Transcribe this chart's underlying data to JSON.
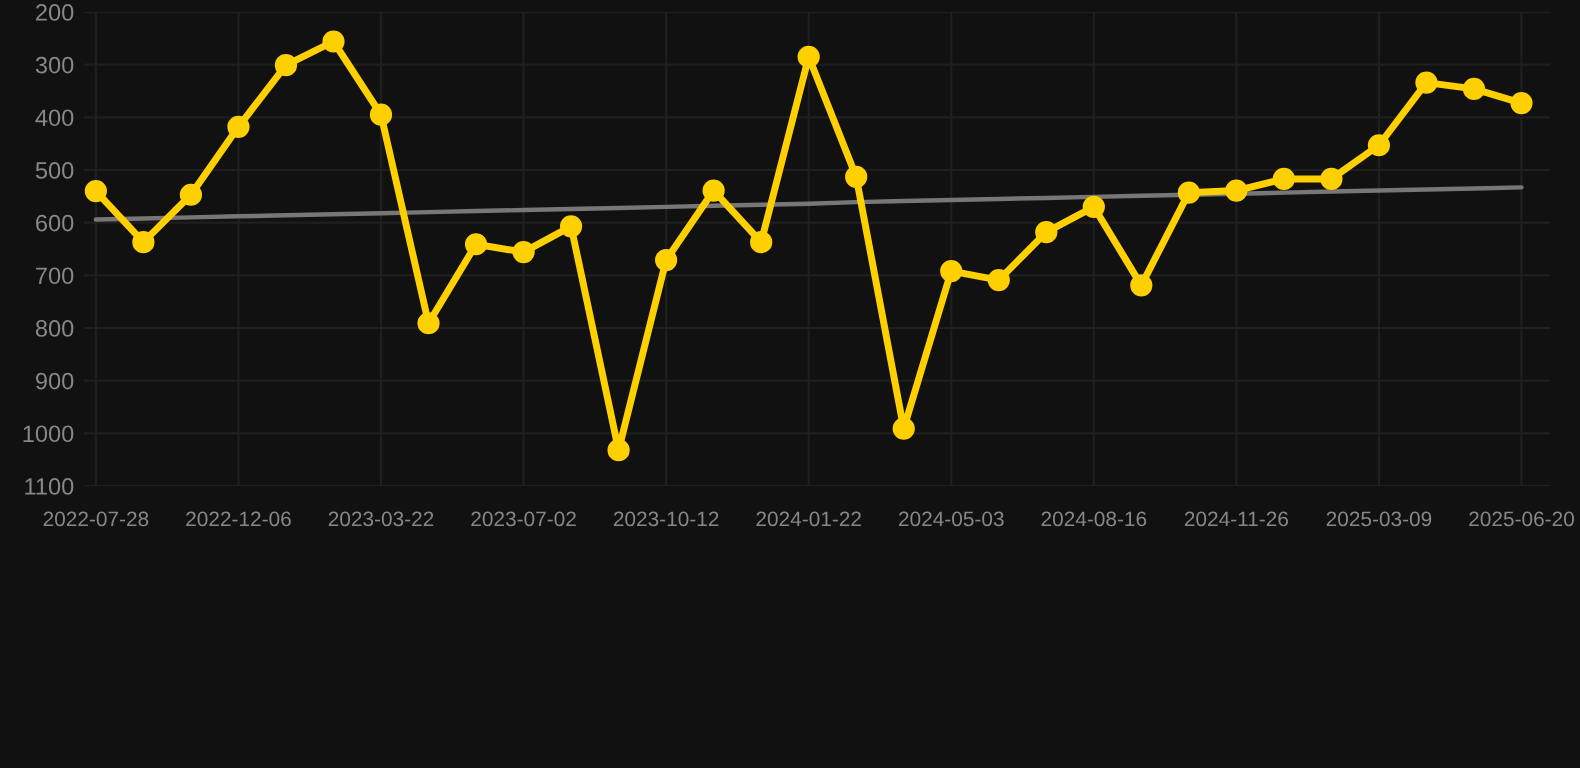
{
  "chart_data": {
    "type": "line",
    "categories": [
      "2022-07-28",
      null,
      null,
      "2022-12-06",
      null,
      null,
      "2023-03-22",
      null,
      null,
      "2023-07-02",
      null,
      null,
      "2023-10-12",
      null,
      null,
      "2024-01-22",
      null,
      null,
      "2024-05-03",
      null,
      null,
      "2024-08-16",
      null,
      null,
      "2024-11-26",
      null,
      null,
      "2025-03-09",
      null,
      null,
      "2025-06-20"
    ],
    "series": [
      {
        "color": "#ffd000",
        "marker": "circle",
        "values": [
          540,
          637,
          547,
          418,
          301,
          256,
          395,
          791,
          641,
          656,
          607,
          1032,
          671,
          539,
          637,
          285,
          513,
          991,
          692,
          709,
          618,
          570,
          719,
          543,
          539,
          517,
          517,
          453,
          334,
          346,
          373
        ]
      },
      {
        "type": "line",
        "color": "#777777",
        "marker": "none",
        "values": [
          594,
          592,
          590,
          588,
          586,
          584,
          582,
          580,
          578,
          576,
          574,
          572,
          570,
          568,
          566,
          564,
          561,
          559,
          557,
          555,
          553,
          551,
          549,
          547,
          545,
          543,
          541,
          539,
          537,
          535,
          533
        ]
      }
    ],
    "ylim": [
      1100,
      200
    ],
    "yticks": [
      200,
      300,
      400,
      500,
      600,
      700,
      800,
      900,
      1000,
      1100
    ],
    "grid": true,
    "line_style": "solid"
  }
}
